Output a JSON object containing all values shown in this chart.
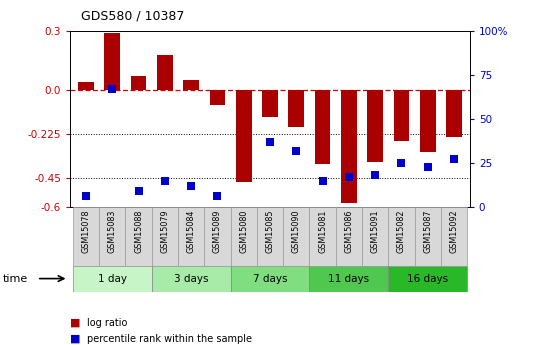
{
  "title": "GDS580 / 10387",
  "samples": [
    "GSM15078",
    "GSM15083",
    "GSM15088",
    "GSM15079",
    "GSM15084",
    "GSM15089",
    "GSM15080",
    "GSM15085",
    "GSM15090",
    "GSM15081",
    "GSM15086",
    "GSM15091",
    "GSM15082",
    "GSM15087",
    "GSM15092"
  ],
  "log_ratio": [
    0.04,
    0.29,
    0.07,
    0.18,
    0.05,
    -0.08,
    -0.47,
    -0.14,
    -0.19,
    -0.38,
    -0.58,
    -0.37,
    -0.26,
    -0.32,
    -0.24
  ],
  "percentile_raw": [
    6,
    67,
    9,
    15,
    12,
    6,
    null,
    37,
    32,
    15,
    17,
    18,
    25,
    23,
    27
  ],
  "groups": [
    {
      "label": "1 day",
      "start": 0,
      "end": 3,
      "color": "#c8f5c8"
    },
    {
      "label": "3 days",
      "start": 3,
      "end": 6,
      "color": "#a8eaa8"
    },
    {
      "label": "7 days",
      "start": 6,
      "end": 9,
      "color": "#80de80"
    },
    {
      "label": "11 days",
      "start": 9,
      "end": 12,
      "color": "#50c850"
    },
    {
      "label": "16 days",
      "start": 12,
      "end": 15,
      "color": "#28b828"
    }
  ],
  "ylim": [
    -0.6,
    0.3
  ],
  "yticks_left": [
    0.3,
    0.0,
    -0.225,
    -0.45,
    -0.6
  ],
  "yticks_right_vals": [
    100,
    75,
    50,
    25,
    0
  ],
  "hline_zero": 0.0,
  "hline_dotted1": -0.225,
  "hline_dotted2": -0.45,
  "bar_color": "#aa0000",
  "dot_color": "#0000cc",
  "bar_width": 0.6,
  "legend_items": [
    "log ratio",
    "percentile rank within the sample"
  ],
  "time_label": "time",
  "sample_bg": "#d8d8d8",
  "ymin": -0.6,
  "ymax": 0.3
}
